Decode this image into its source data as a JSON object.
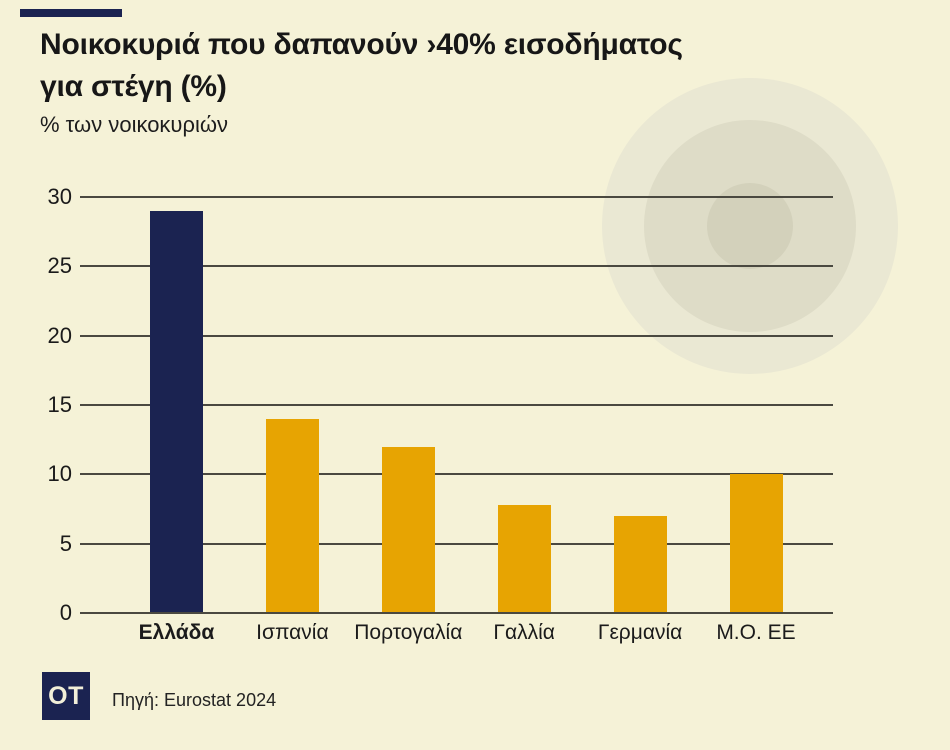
{
  "header": {
    "title_line1": "Νοικοκυριά που δαπανούν ›40% εισοδήματος",
    "title_line2": "για στέγη (%)",
    "subtitle": "% των νοικοκυριών"
  },
  "footer": {
    "logo_text": "OT",
    "source": "Πηγή: Eurostat 2024"
  },
  "colors": {
    "background": "#f5f2d7",
    "highlight_navy": "#1b2351",
    "bar_orange": "#e7a402",
    "gridline": "#4a4940",
    "circle_outer": "#eae8d3",
    "circle_mid": "#dedcc7",
    "circle_inner": "#d3d1bb"
  },
  "chart_data": {
    "type": "bar",
    "title": "Νοικοκυριά που δαπανούν ›40% εισοδήματος για στέγη (%)",
    "subtitle": "% των νοικοκυριών",
    "categories": [
      "Ελλάδα",
      "Ισπανία",
      "Πορτογαλία",
      "Γαλλία",
      "Γερμανία",
      "Μ.Ο. ΕΕ"
    ],
    "values": [
      29,
      14,
      12,
      7.8,
      7,
      10
    ],
    "highlight_index": 0,
    "highlight_color": "#1b2351",
    "bar_color": "#e7a402",
    "yticks": [
      0,
      5,
      10,
      15,
      20,
      25,
      30
    ],
    "ylim": [
      0,
      30
    ],
    "grid": true,
    "legend": "none",
    "source": "Πηγή: Eurostat 2024"
  }
}
